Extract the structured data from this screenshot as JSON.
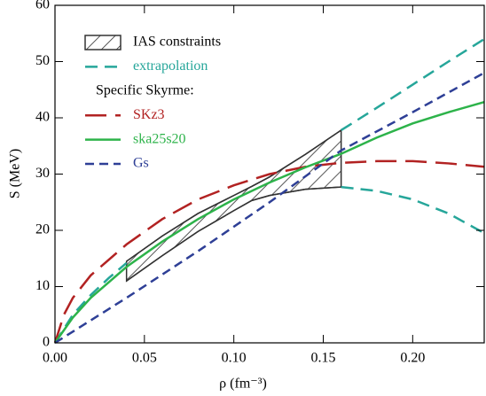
{
  "chart_data": {
    "type": "line",
    "xlabel": "ρ (fm⁻³)",
    "ylabel": "S (MeV)",
    "xlim": [
      0,
      0.24
    ],
    "ylim": [
      0,
      60
    ],
    "xticks": [
      {
        "value": 0,
        "label": "0.00"
      },
      0.05,
      {
        "value": 0.1,
        "label": "0.10"
      },
      0.15,
      {
        "value": 0.2,
        "label": "0.20"
      }
    ],
    "yticks": [
      0,
      10,
      20,
      30,
      40,
      50,
      60
    ],
    "legend": "upper left",
    "legend_heading": "Specific Skyrme:",
    "band": {
      "name": "IAS constraints",
      "color": "#333333",
      "x": [
        0.04,
        0.06,
        0.08,
        0.1,
        0.11,
        0.12,
        0.14,
        0.16
      ],
      "upper": [
        14.5,
        19,
        23,
        26.2,
        27.8,
        29.5,
        33.5,
        37.8
      ],
      "lower": [
        11,
        15.5,
        19.8,
        23.5,
        25.3,
        26.2,
        27.3,
        27.7
      ]
    },
    "series": [
      {
        "name": "extrapolation",
        "color": "#26a69a",
        "dash": "dashed",
        "x": [
          0,
          0.01,
          0.02,
          0.03,
          0.04,
          null,
          0.16,
          0.18,
          0.2,
          0.22,
          0.24,
          null,
          0.16,
          0.18,
          0.2,
          0.22,
          0.24
        ],
        "values": [
          0,
          5,
          8.5,
          11.5,
          14.2,
          null,
          37.8,
          41.8,
          45.9,
          50,
          54,
          null,
          27.7,
          27,
          25.5,
          23,
          19.5
        ]
      },
      {
        "name": "SKz3",
        "color": "#b22222",
        "dash": "long",
        "x": [
          0,
          0.005,
          0.01,
          0.02,
          0.04,
          0.06,
          0.08,
          0.1,
          0.12,
          0.14,
          0.16,
          0.18,
          0.2,
          0.22,
          0.24
        ],
        "values": [
          0,
          5,
          8,
          12,
          17.5,
          22,
          25.5,
          28,
          30,
          31.3,
          32,
          32.3,
          32.3,
          31.9,
          31.3
        ]
      },
      {
        "name": "ska25s20",
        "color": "#2db34a",
        "dash": "solid",
        "x": [
          0,
          0.01,
          0.02,
          0.04,
          0.06,
          0.08,
          0.1,
          0.12,
          0.14,
          0.16,
          0.18,
          0.2,
          0.22,
          0.24
        ],
        "values": [
          0,
          4.5,
          8,
          13.5,
          18,
          22,
          25.5,
          28.5,
          31.2,
          33.6,
          36.5,
          39,
          41,
          42.8
        ]
      },
      {
        "name": "Gs",
        "color": "#2e3f96",
        "dash": "short",
        "x": [
          0,
          0.04,
          0.08,
          0.12,
          0.16,
          0.2,
          0.24
        ],
        "values": [
          0,
          8,
          16.3,
          25,
          34.2,
          41,
          48
        ]
      }
    ]
  }
}
